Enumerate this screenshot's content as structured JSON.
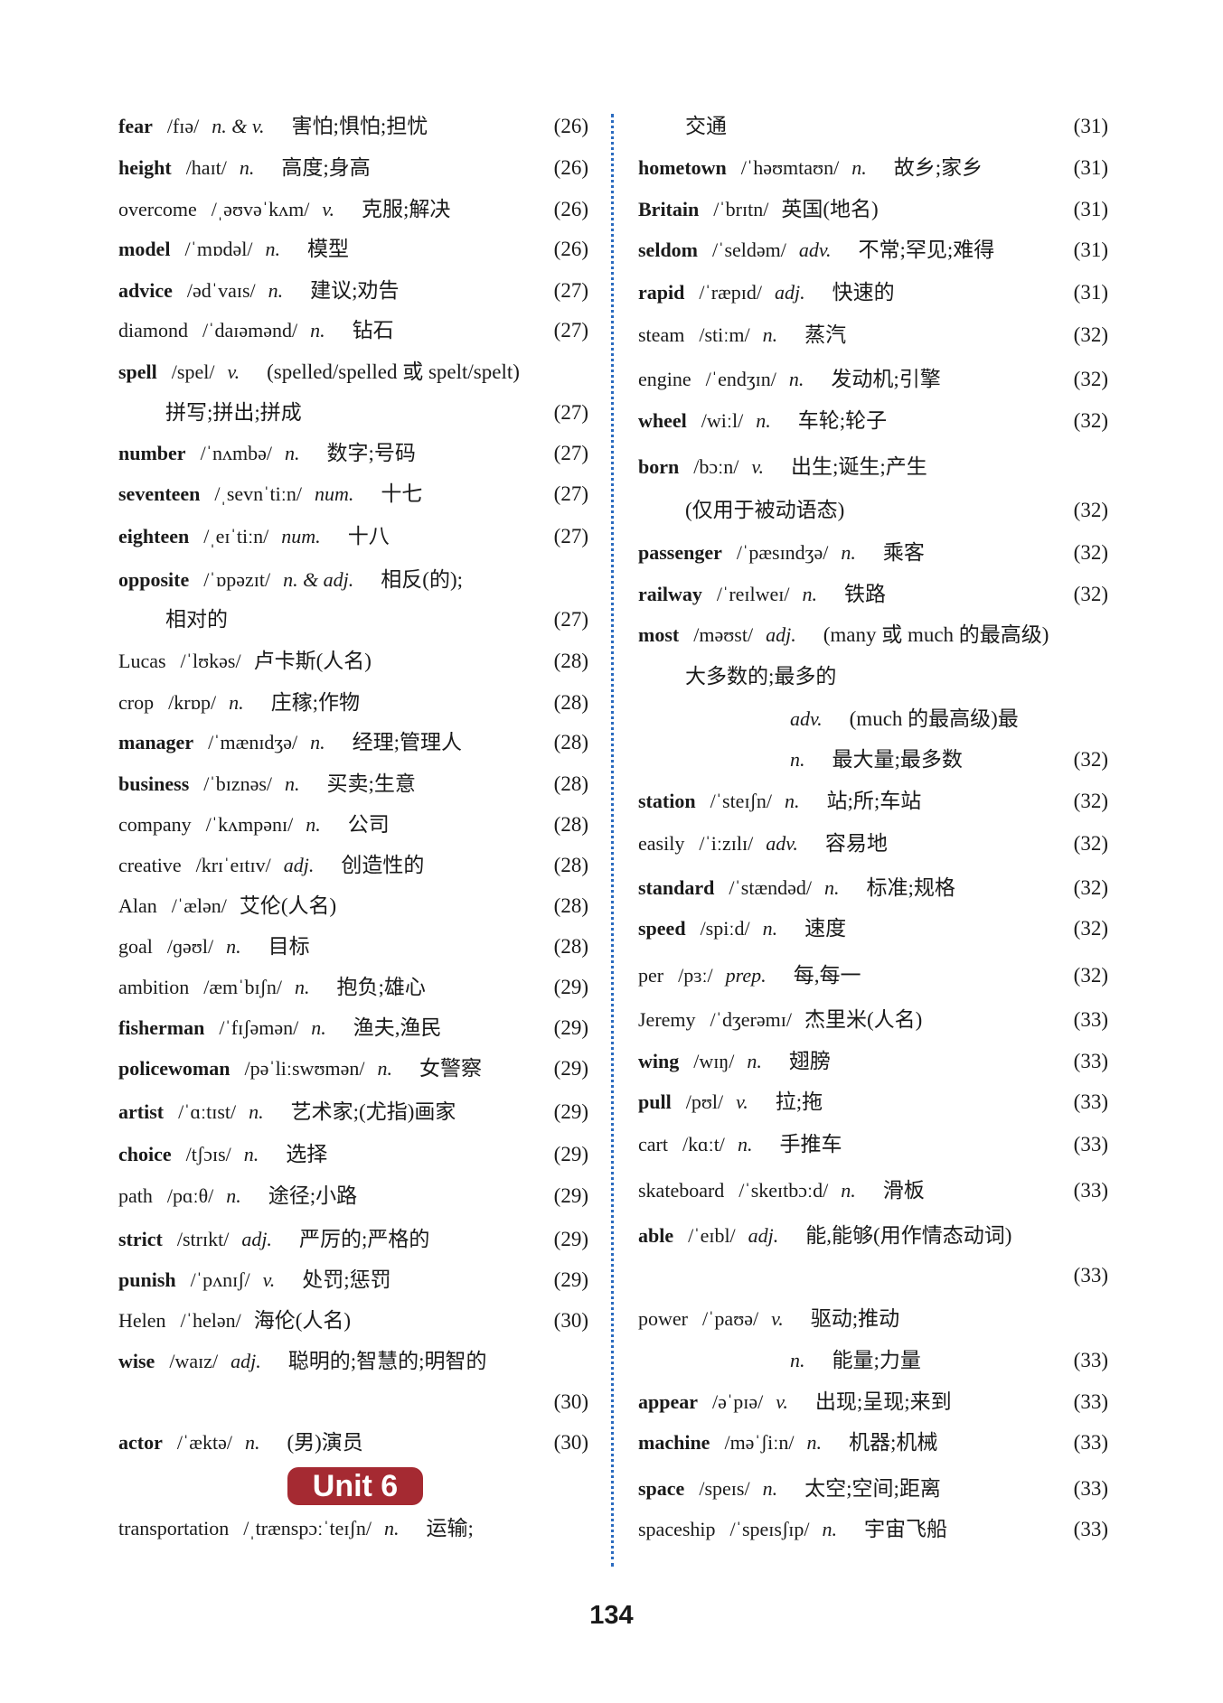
{
  "accent_color": "#a52a32",
  "divider_color": "#2b6bbf",
  "unit_label": "Unit 6",
  "page_number": "134",
  "left": [
    {
      "w": "fear",
      "b": true,
      "ph": "/fɪə/",
      "pos": "n. & v.",
      "zh": "害怕;惧怕;担忧",
      "pg": "(26)"
    },
    {
      "w": "height",
      "b": true,
      "ph": "/haɪt/",
      "pos": "n.",
      "zh": "高度;身高",
      "pg": "(26)"
    },
    {
      "w": "overcome",
      "b": false,
      "ph": "/ˌəʊvəˈkʌm/",
      "pos": "v.",
      "zh": "克服;解决",
      "pg": "(26)"
    },
    {
      "w": "model",
      "b": true,
      "ph": "/ˈmɒdəl/",
      "pos": "n.",
      "zh": "模型",
      "pg": "(26)"
    },
    {
      "w": "advice",
      "b": true,
      "ph": "/ədˈvaɪs/",
      "pos": "n.",
      "zh": "建议;劝告",
      "pg": "(27)"
    },
    {
      "w": "diamond",
      "b": false,
      "ph": "/ˈdaɪəmənd/",
      "pos": "n.",
      "zh": "钻石",
      "pg": "(27)"
    },
    {
      "w": "spell",
      "b": true,
      "ph": "/spel/",
      "pos": "v.",
      "zh": "(spelled/spelled 或 spelt/spelt)",
      "pg": ""
    },
    {
      "w": "",
      "b": false,
      "ph": "",
      "pos": "",
      "zh": "拼写;拼出;拼成",
      "pg": "(27)",
      "indent": 1
    },
    {
      "w": "number",
      "b": true,
      "ph": "/ˈnʌmbə/",
      "pos": "n.",
      "zh": "数字;号码",
      "pg": "(27)"
    },
    {
      "w": "seventeen",
      "b": true,
      "ph": "/ˌsevnˈtiːn/",
      "pos": "num.",
      "zh": "十七",
      "pg": "(27)"
    },
    {
      "w": "eighteen",
      "b": true,
      "ph": "/ˌeɪˈtiːn/",
      "pos": "num.",
      "zh": "十八",
      "pg": "(27)"
    },
    {
      "w": "opposite",
      "b": true,
      "ph": "/ˈɒpəzɪt/",
      "pos": "n. & adj.",
      "zh": "相反(的);",
      "pg": ""
    },
    {
      "w": "",
      "b": false,
      "ph": "",
      "pos": "",
      "zh": "相对的",
      "pg": "(27)",
      "indent": 1
    },
    {
      "w": "Lucas",
      "b": false,
      "ph": "/ˈlʊkəs/",
      "pos": "",
      "zh": "卢卡斯(人名)",
      "pg": "(28)"
    },
    {
      "w": "crop",
      "b": false,
      "ph": "/krɒp/",
      "pos": "n.",
      "zh": "庄稼;作物",
      "pg": "(28)"
    },
    {
      "w": "manager",
      "b": true,
      "ph": "/ˈmænɪdʒə/",
      "pos": "n.",
      "zh": "经理;管理人",
      "pg": "(28)"
    },
    {
      "w": "business",
      "b": true,
      "ph": "/ˈbɪznəs/",
      "pos": "n.",
      "zh": "买卖;生意",
      "pg": "(28)"
    },
    {
      "w": "company",
      "b": false,
      "ph": "/ˈkʌmpənɪ/",
      "pos": "n.",
      "zh": "公司",
      "pg": "(28)"
    },
    {
      "w": "creative",
      "b": false,
      "ph": "/krɪˈeɪtɪv/",
      "pos": "adj.",
      "zh": "创造性的",
      "pg": "(28)"
    },
    {
      "w": "Alan",
      "b": false,
      "ph": "/ˈælən/",
      "pos": "",
      "zh": "艾伦(人名)",
      "pg": "(28)"
    },
    {
      "w": "goal",
      "b": false,
      "ph": "/ɡəʊl/",
      "pos": "n.",
      "zh": "目标",
      "pg": "(28)"
    },
    {
      "w": "ambition",
      "b": false,
      "ph": "/æmˈbɪʃn/",
      "pos": "n.",
      "zh": "抱负;雄心",
      "pg": "(29)"
    },
    {
      "w": "fisherman",
      "b": true,
      "ph": "/ˈfɪʃəmən/",
      "pos": "n.",
      "zh": "渔夫,渔民",
      "pg": "(29)"
    },
    {
      "w": "policewoman",
      "b": true,
      "ph": "/pəˈliːswʊmən/",
      "pos": "n.",
      "zh": "女警察",
      "pg": "(29)"
    },
    {
      "w": "artist",
      "b": true,
      "ph": "/ˈɑːtɪst/",
      "pos": "n.",
      "zh": "艺术家;(尤指)画家",
      "pg": "(29)"
    },
    {
      "w": "choice",
      "b": true,
      "ph": "/tʃɔɪs/",
      "pos": "n.",
      "zh": "选择",
      "pg": "(29)"
    },
    {
      "w": "path",
      "b": false,
      "ph": "/pɑːθ/",
      "pos": "n.",
      "zh": "途径;小路",
      "pg": "(29)"
    },
    {
      "w": "strict",
      "b": true,
      "ph": "/strɪkt/",
      "pos": "adj.",
      "zh": "严厉的;严格的",
      "pg": "(29)"
    },
    {
      "w": "punish",
      "b": true,
      "ph": "/ˈpʌnɪʃ/",
      "pos": "v.",
      "zh": "处罚;惩罚",
      "pg": "(29)"
    },
    {
      "w": "Helen",
      "b": false,
      "ph": "/ˈhelən/",
      "pos": "",
      "zh": "海伦(人名)",
      "pg": "(30)"
    },
    {
      "w": "wise",
      "b": true,
      "ph": "/waɪz/",
      "pos": "adj.",
      "zh": "聪明的;智慧的;明智的",
      "pg": ""
    },
    {
      "w": "",
      "b": false,
      "ph": "",
      "pos": "",
      "zh": "",
      "pg": "(30)"
    },
    {
      "w": "actor",
      "b": true,
      "ph": "/ˈæktə/",
      "pos": "n.",
      "zh": "(男)演员",
      "pg": "(30)"
    },
    {
      "w": "transportation",
      "b": false,
      "ph": "/ˌtrænspɔːˈteɪʃn/",
      "pos": "n.",
      "zh": "运输;",
      "pg": ""
    }
  ],
  "right": [
    {
      "w": "",
      "b": false,
      "ph": "",
      "pos": "",
      "zh": "交通",
      "pg": "(31)",
      "indent": 1
    },
    {
      "w": "hometown",
      "b": true,
      "ph": "/ˈhəʊmtaʊn/",
      "pos": "n.",
      "zh": "故乡;家乡",
      "pg": "(31)"
    },
    {
      "w": "Britain",
      "b": true,
      "ph": "/ˈbrɪtn/",
      "pos": "",
      "zh": "英国(地名)",
      "pg": "(31)"
    },
    {
      "w": "seldom",
      "b": true,
      "ph": "/ˈseldəm/",
      "pos": "adv.",
      "zh": "不常;罕见;难得",
      "pg": "(31)"
    },
    {
      "w": "rapid",
      "b": true,
      "ph": "/ˈræpɪd/",
      "pos": "adj.",
      "zh": "快速的",
      "pg": "(31)"
    },
    {
      "w": "steam",
      "b": false,
      "ph": "/stiːm/",
      "pos": "n.",
      "zh": "蒸汽",
      "pg": "(32)"
    },
    {
      "w": "engine",
      "b": false,
      "ph": "/ˈendʒɪn/",
      "pos": "n.",
      "zh": "发动机;引擎",
      "pg": "(32)"
    },
    {
      "w": "wheel",
      "b": true,
      "ph": "/wiːl/",
      "pos": "n.",
      "zh": "车轮;轮子",
      "pg": "(32)"
    },
    {
      "w": "born",
      "b": true,
      "ph": "/bɔːn/",
      "pos": "v.",
      "zh": "出生;诞生;产生",
      "pg": ""
    },
    {
      "w": "",
      "b": false,
      "ph": "",
      "pos": "",
      "zh": "(仅用于被动语态)",
      "pg": "(32)",
      "indent": 1
    },
    {
      "w": "passenger",
      "b": true,
      "ph": "/ˈpæsɪndʒə/",
      "pos": "n.",
      "zh": "乘客",
      "pg": "(32)"
    },
    {
      "w": "railway",
      "b": true,
      "ph": "/ˈreɪlweɪ/",
      "pos": "n.",
      "zh": "铁路",
      "pg": "(32)"
    },
    {
      "w": "most",
      "b": true,
      "ph": "/məʊst/",
      "pos": "adj.",
      "zh": "(many 或 much 的最高级)",
      "pg": ""
    },
    {
      "w": "",
      "b": false,
      "ph": "",
      "pos": "",
      "zh": "大多数的;最多的",
      "pg": "",
      "indent": 1
    },
    {
      "w": "",
      "b": false,
      "ph": "",
      "pos": "adv.",
      "zh": "(much 的最高级)最",
      "pg": "",
      "indent": 2
    },
    {
      "w": "",
      "b": false,
      "ph": "",
      "pos": "n.",
      "zh": "最大量;最多数",
      "pg": "(32)",
      "indent": 2
    },
    {
      "w": "station",
      "b": true,
      "ph": "/ˈsteɪʃn/",
      "pos": "n.",
      "zh": "站;所;车站",
      "pg": "(32)"
    },
    {
      "w": "easily",
      "b": false,
      "ph": "/ˈiːzɪlɪ/",
      "pos": "adv.",
      "zh": "容易地",
      "pg": "(32)"
    },
    {
      "w": "standard",
      "b": true,
      "ph": "/ˈstændəd/",
      "pos": "n.",
      "zh": "标准;规格",
      "pg": "(32)"
    },
    {
      "w": "speed",
      "b": true,
      "ph": "/spiːd/",
      "pos": "n.",
      "zh": "速度",
      "pg": "(32)"
    },
    {
      "w": "per",
      "b": false,
      "ph": "/pɜː/",
      "pos": "prep.",
      "zh": "每,每一",
      "pg": "(32)"
    },
    {
      "w": "Jeremy",
      "b": false,
      "ph": "/ˈdʒerəmɪ/",
      "pos": "",
      "zh": "杰里米(人名)",
      "pg": "(33)"
    },
    {
      "w": "wing",
      "b": true,
      "ph": "/wɪŋ/",
      "pos": "n.",
      "zh": "翅膀",
      "pg": "(33)"
    },
    {
      "w": "pull",
      "b": true,
      "ph": "/pʊl/",
      "pos": "v.",
      "zh": "拉;拖",
      "pg": "(33)"
    },
    {
      "w": "cart",
      "b": false,
      "ph": "/kɑːt/",
      "pos": "n.",
      "zh": "手推车",
      "pg": "(33)"
    },
    {
      "w": "skateboard",
      "b": false,
      "ph": "/ˈskeɪtbɔːd/",
      "pos": "n.",
      "zh": "滑板",
      "pg": "(33)"
    },
    {
      "w": "able",
      "b": true,
      "ph": "/ˈeɪbl/",
      "pos": "adj.",
      "zh": "能,能够(用作情态动词)",
      "pg": ""
    },
    {
      "w": "",
      "b": false,
      "ph": "",
      "pos": "",
      "zh": "",
      "pg": "(33)"
    },
    {
      "w": "power",
      "b": false,
      "ph": "/ˈpaʊə/",
      "pos": "v.",
      "zh": "驱动;推动",
      "pg": ""
    },
    {
      "w": "",
      "b": false,
      "ph": "",
      "pos": "n.",
      "zh": "能量;力量",
      "pg": "(33)",
      "indent": 2
    },
    {
      "w": "appear",
      "b": true,
      "ph": "/əˈpɪə/",
      "pos": "v.",
      "zh": "出现;呈现;来到",
      "pg": "(33)"
    },
    {
      "w": "machine",
      "b": true,
      "ph": "/məˈʃiːn/",
      "pos": "n.",
      "zh": "机器;机械",
      "pg": "(33)"
    },
    {
      "w": "space",
      "b": true,
      "ph": "/speɪs/",
      "pos": "n.",
      "zh": "太空;空间;距离",
      "pg": "(33)"
    },
    {
      "w": "spaceship",
      "b": false,
      "ph": "/ˈspeɪsʃɪp/",
      "pos": "n.",
      "zh": "宇宙飞船",
      "pg": "(33)"
    }
  ]
}
